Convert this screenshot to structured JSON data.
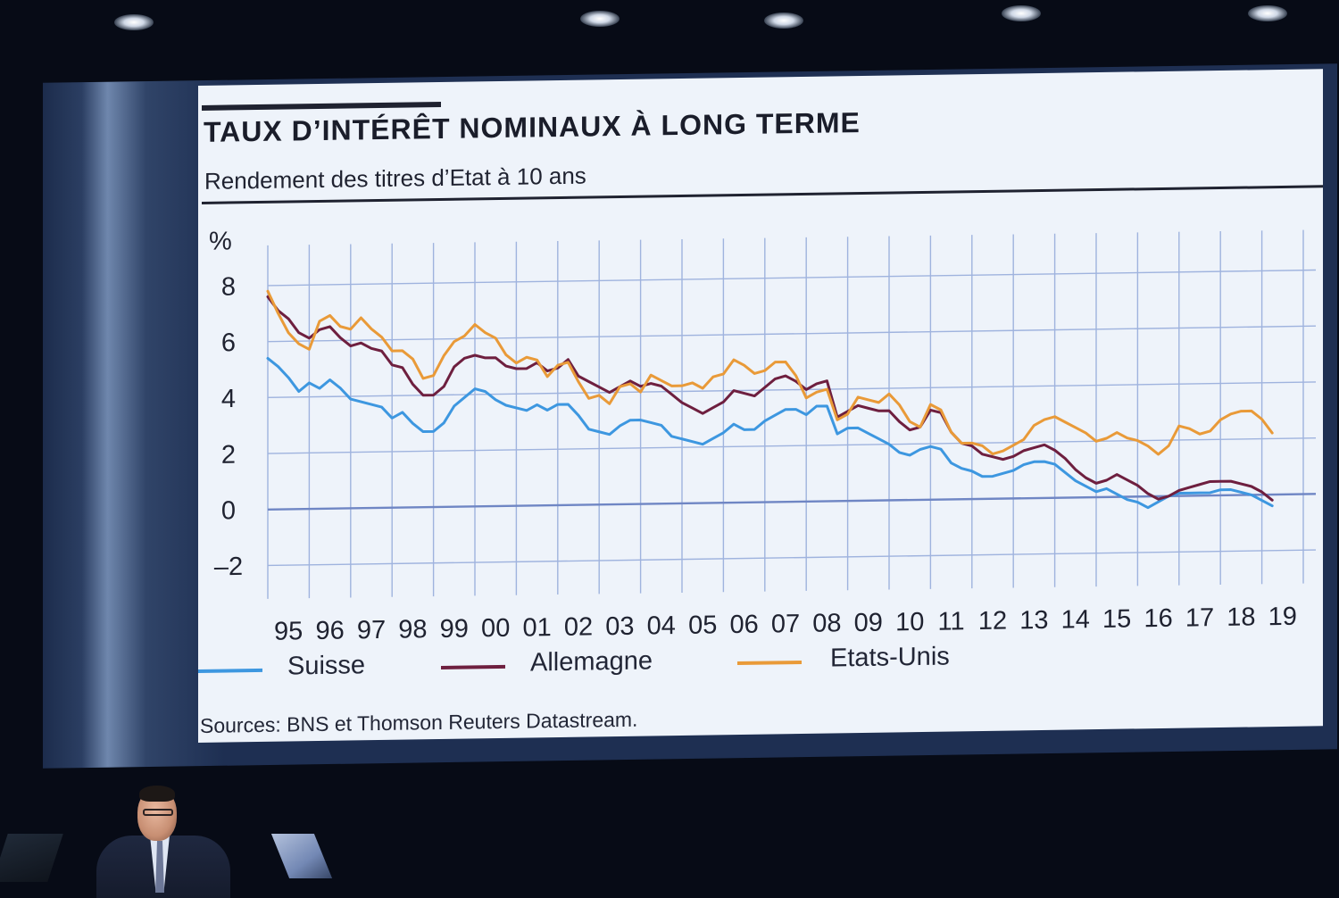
{
  "slide": {
    "title": "TAUX D’INTÉRÊT NOMINAUX À LONG TERME",
    "subtitle": "Rendement des titres d’Etat à 10 ans",
    "source": "Sources: BNS et Thomson Reuters Datastream."
  },
  "colors": {
    "suisse": "#3d97e0",
    "allemagne": "#6e1f3f",
    "etats_unis": "#e99a38",
    "grid": "#9fb3de",
    "zero_line": "#6f86c4"
  },
  "chart_data": {
    "type": "line",
    "title": "TAUX D’INTÉRÊT NOMINAUX À LONG TERME",
    "subtitle": "Rendement des titres d’Etat à 10 ans",
    "ylabel": "%",
    "xlabel": "",
    "ylim": [
      -3,
      8.8
    ],
    "xlim": [
      1995,
      2020
    ],
    "yticks": [
      -2,
      0,
      2,
      4,
      6,
      8
    ],
    "ytick_labels": [
      "–2",
      "0",
      "2",
      "4",
      "6",
      "8"
    ],
    "xtick_labels": [
      "95",
      "96",
      "97",
      "98",
      "99",
      "00",
      "01",
      "02",
      "03",
      "04",
      "05",
      "06",
      "07",
      "08",
      "09",
      "10",
      "11",
      "12",
      "13",
      "14",
      "15",
      "16",
      "17",
      "18",
      "19"
    ],
    "grid": true,
    "legend": "bottom",
    "source": "Sources: BNS et Thomson Reuters Datastream.",
    "series": [
      {
        "name": "Suisse",
        "x": [
          1995.0,
          1995.25,
          1995.5,
          1995.75,
          1996.0,
          1996.25,
          1996.5,
          1996.75,
          1997.0,
          1997.25,
          1997.5,
          1997.75,
          1998.0,
          1998.25,
          1998.5,
          1998.75,
          1999.0,
          1999.25,
          1999.5,
          1999.75,
          2000.0,
          2000.25,
          2000.5,
          2000.75,
          2001.0,
          2001.25,
          2001.5,
          2001.75,
          2002.0,
          2002.25,
          2002.5,
          2002.75,
          2003.0,
          2003.25,
          2003.5,
          2003.75,
          2004.0,
          2004.25,
          2004.5,
          2004.75,
          2005.0,
          2005.25,
          2005.5,
          2005.75,
          2006.0,
          2006.25,
          2006.5,
          2006.75,
          2007.0,
          2007.25,
          2007.5,
          2007.75,
          2008.0,
          2008.25,
          2008.5,
          2008.75,
          2009.0,
          2009.25,
          2009.5,
          2009.75,
          2010.0,
          2010.25,
          2010.5,
          2010.75,
          2011.0,
          2011.25,
          2011.5,
          2011.75,
          2012.0,
          2012.25,
          2012.5,
          2012.75,
          2013.0,
          2013.25,
          2013.5,
          2013.75,
          2014.0,
          2014.25,
          2014.5,
          2014.75,
          2015.0,
          2015.25,
          2015.5,
          2015.75,
          2016.0,
          2016.25,
          2016.5,
          2016.75,
          2017.0,
          2017.25,
          2017.5,
          2017.75,
          2018.0,
          2018.25,
          2018.5,
          2018.75,
          2019.0,
          2019.25
        ],
        "values": [
          5.4,
          5.1,
          4.7,
          4.2,
          4.5,
          4.3,
          4.6,
          4.3,
          3.9,
          3.8,
          3.7,
          3.6,
          3.2,
          3.4,
          3.0,
          2.7,
          2.7,
          3.0,
          3.6,
          3.9,
          4.2,
          4.1,
          3.8,
          3.6,
          3.5,
          3.4,
          3.6,
          3.4,
          3.6,
          3.6,
          3.2,
          2.7,
          2.6,
          2.5,
          2.8,
          3.0,
          3.0,
          2.9,
          2.8,
          2.4,
          2.3,
          2.2,
          2.1,
          2.3,
          2.5,
          2.8,
          2.6,
          2.6,
          2.9,
          3.1,
          3.3,
          3.3,
          3.1,
          3.4,
          3.4,
          2.4,
          2.6,
          2.6,
          2.4,
          2.2,
          2.0,
          1.7,
          1.6,
          1.8,
          1.9,
          1.8,
          1.3,
          1.1,
          1.0,
          0.8,
          0.8,
          0.9,
          1.0,
          1.2,
          1.3,
          1.3,
          1.2,
          0.9,
          0.6,
          0.4,
          0.2,
          0.3,
          0.1,
          -0.1,
          -0.2,
          -0.4,
          -0.2,
          0.0,
          0.1,
          0.1,
          0.1,
          0.1,
          0.2,
          0.2,
          0.1,
          0.0,
          -0.2,
          -0.4
        ]
      },
      {
        "name": "Allemagne",
        "x": [
          1995.0,
          1995.25,
          1995.5,
          1995.75,
          1996.0,
          1996.25,
          1996.5,
          1996.75,
          1997.0,
          1997.25,
          1997.5,
          1997.75,
          1998.0,
          1998.25,
          1998.5,
          1998.75,
          1999.0,
          1999.25,
          1999.5,
          1999.75,
          2000.0,
          2000.25,
          2000.5,
          2000.75,
          2001.0,
          2001.25,
          2001.5,
          2001.75,
          2002.0,
          2002.25,
          2002.5,
          2002.75,
          2003.0,
          2003.25,
          2003.5,
          2003.75,
          2004.0,
          2004.25,
          2004.5,
          2004.75,
          2005.0,
          2005.25,
          2005.5,
          2005.75,
          2006.0,
          2006.25,
          2006.5,
          2006.75,
          2007.0,
          2007.25,
          2007.5,
          2007.75,
          2008.0,
          2008.25,
          2008.5,
          2008.75,
          2009.0,
          2009.25,
          2009.5,
          2009.75,
          2010.0,
          2010.25,
          2010.5,
          2010.75,
          2011.0,
          2011.25,
          2011.5,
          2011.75,
          2012.0,
          2012.25,
          2012.5,
          2012.75,
          2013.0,
          2013.25,
          2013.5,
          2013.75,
          2014.0,
          2014.25,
          2014.5,
          2014.75,
          2015.0,
          2015.25,
          2015.5,
          2015.75,
          2016.0,
          2016.25,
          2016.5,
          2016.75,
          2017.0,
          2017.25,
          2017.5,
          2017.75,
          2018.0,
          2018.25,
          2018.5,
          2018.75,
          2019.0,
          2019.25
        ],
        "values": [
          7.6,
          7.1,
          6.8,
          6.3,
          6.1,
          6.4,
          6.5,
          6.1,
          5.8,
          5.9,
          5.7,
          5.6,
          5.1,
          5.0,
          4.4,
          4.0,
          4.0,
          4.3,
          5.0,
          5.3,
          5.4,
          5.3,
          5.3,
          5.0,
          4.9,
          4.9,
          5.1,
          4.8,
          4.9,
          5.2,
          4.6,
          4.4,
          4.2,
          4.0,
          4.2,
          4.4,
          4.2,
          4.3,
          4.2,
          3.9,
          3.6,
          3.4,
          3.2,
          3.4,
          3.6,
          4.0,
          3.9,
          3.8,
          4.1,
          4.4,
          4.5,
          4.3,
          4.0,
          4.2,
          4.3,
          3.0,
          3.2,
          3.4,
          3.3,
          3.2,
          3.2,
          2.8,
          2.5,
          2.6,
          3.2,
          3.1,
          2.4,
          2.0,
          1.9,
          1.6,
          1.5,
          1.4,
          1.5,
          1.7,
          1.8,
          1.9,
          1.7,
          1.4,
          1.0,
          0.7,
          0.5,
          0.6,
          0.8,
          0.6,
          0.4,
          0.1,
          -0.1,
          0.0,
          0.2,
          0.3,
          0.4,
          0.5,
          0.5,
          0.5,
          0.4,
          0.3,
          0.1,
          -0.2
        ]
      },
      {
        "name": "Etats-Unis",
        "x": [
          1995.0,
          1995.25,
          1995.5,
          1995.75,
          1996.0,
          1996.25,
          1996.5,
          1996.75,
          1997.0,
          1997.25,
          1997.5,
          1997.75,
          1998.0,
          1998.25,
          1998.5,
          1998.75,
          1999.0,
          1999.25,
          1999.5,
          1999.75,
          2000.0,
          2000.25,
          2000.5,
          2000.75,
          2001.0,
          2001.25,
          2001.5,
          2001.75,
          2002.0,
          2002.25,
          2002.5,
          2002.75,
          2003.0,
          2003.25,
          2003.5,
          2003.75,
          2004.0,
          2004.25,
          2004.5,
          2004.75,
          2005.0,
          2005.25,
          2005.5,
          2005.75,
          2006.0,
          2006.25,
          2006.5,
          2006.75,
          2007.0,
          2007.25,
          2007.5,
          2007.75,
          2008.0,
          2008.25,
          2008.5,
          2008.75,
          2009.0,
          2009.25,
          2009.5,
          2009.75,
          2010.0,
          2010.25,
          2010.5,
          2010.75,
          2011.0,
          2011.25,
          2011.5,
          2011.75,
          2012.0,
          2012.25,
          2012.5,
          2012.75,
          2013.0,
          2013.25,
          2013.5,
          2013.75,
          2014.0,
          2014.25,
          2014.5,
          2014.75,
          2015.0,
          2015.25,
          2015.5,
          2015.75,
          2016.0,
          2016.25,
          2016.5,
          2016.75,
          2017.0,
          2017.25,
          2017.5,
          2017.75,
          2018.0,
          2018.25,
          2018.5,
          2018.75,
          2019.0,
          2019.25
        ],
        "values": [
          7.8,
          7.0,
          6.3,
          5.9,
          5.7,
          6.7,
          6.9,
          6.5,
          6.4,
          6.8,
          6.4,
          6.1,
          5.6,
          5.6,
          5.3,
          4.6,
          4.7,
          5.4,
          5.9,
          6.1,
          6.5,
          6.2,
          6.0,
          5.4,
          5.1,
          5.3,
          5.2,
          4.6,
          5.0,
          5.1,
          4.4,
          3.8,
          3.9,
          3.6,
          4.2,
          4.3,
          4.0,
          4.6,
          4.4,
          4.2,
          4.2,
          4.3,
          4.1,
          4.5,
          4.6,
          5.1,
          4.9,
          4.6,
          4.7,
          5.0,
          5.0,
          4.5,
          3.7,
          3.9,
          4.0,
          2.9,
          3.1,
          3.7,
          3.6,
          3.5,
          3.8,
          3.4,
          2.8,
          2.6,
          3.4,
          3.2,
          2.4,
          2.0,
          2.0,
          1.9,
          1.6,
          1.7,
          1.9,
          2.1,
          2.6,
          2.8,
          2.9,
          2.7,
          2.5,
          2.3,
          2.0,
          2.1,
          2.3,
          2.1,
          2.0,
          1.8,
          1.5,
          1.8,
          2.5,
          2.4,
          2.2,
          2.3,
          2.7,
          2.9,
          3.0,
          3.0,
          2.7,
          2.2
        ]
      }
    ]
  }
}
